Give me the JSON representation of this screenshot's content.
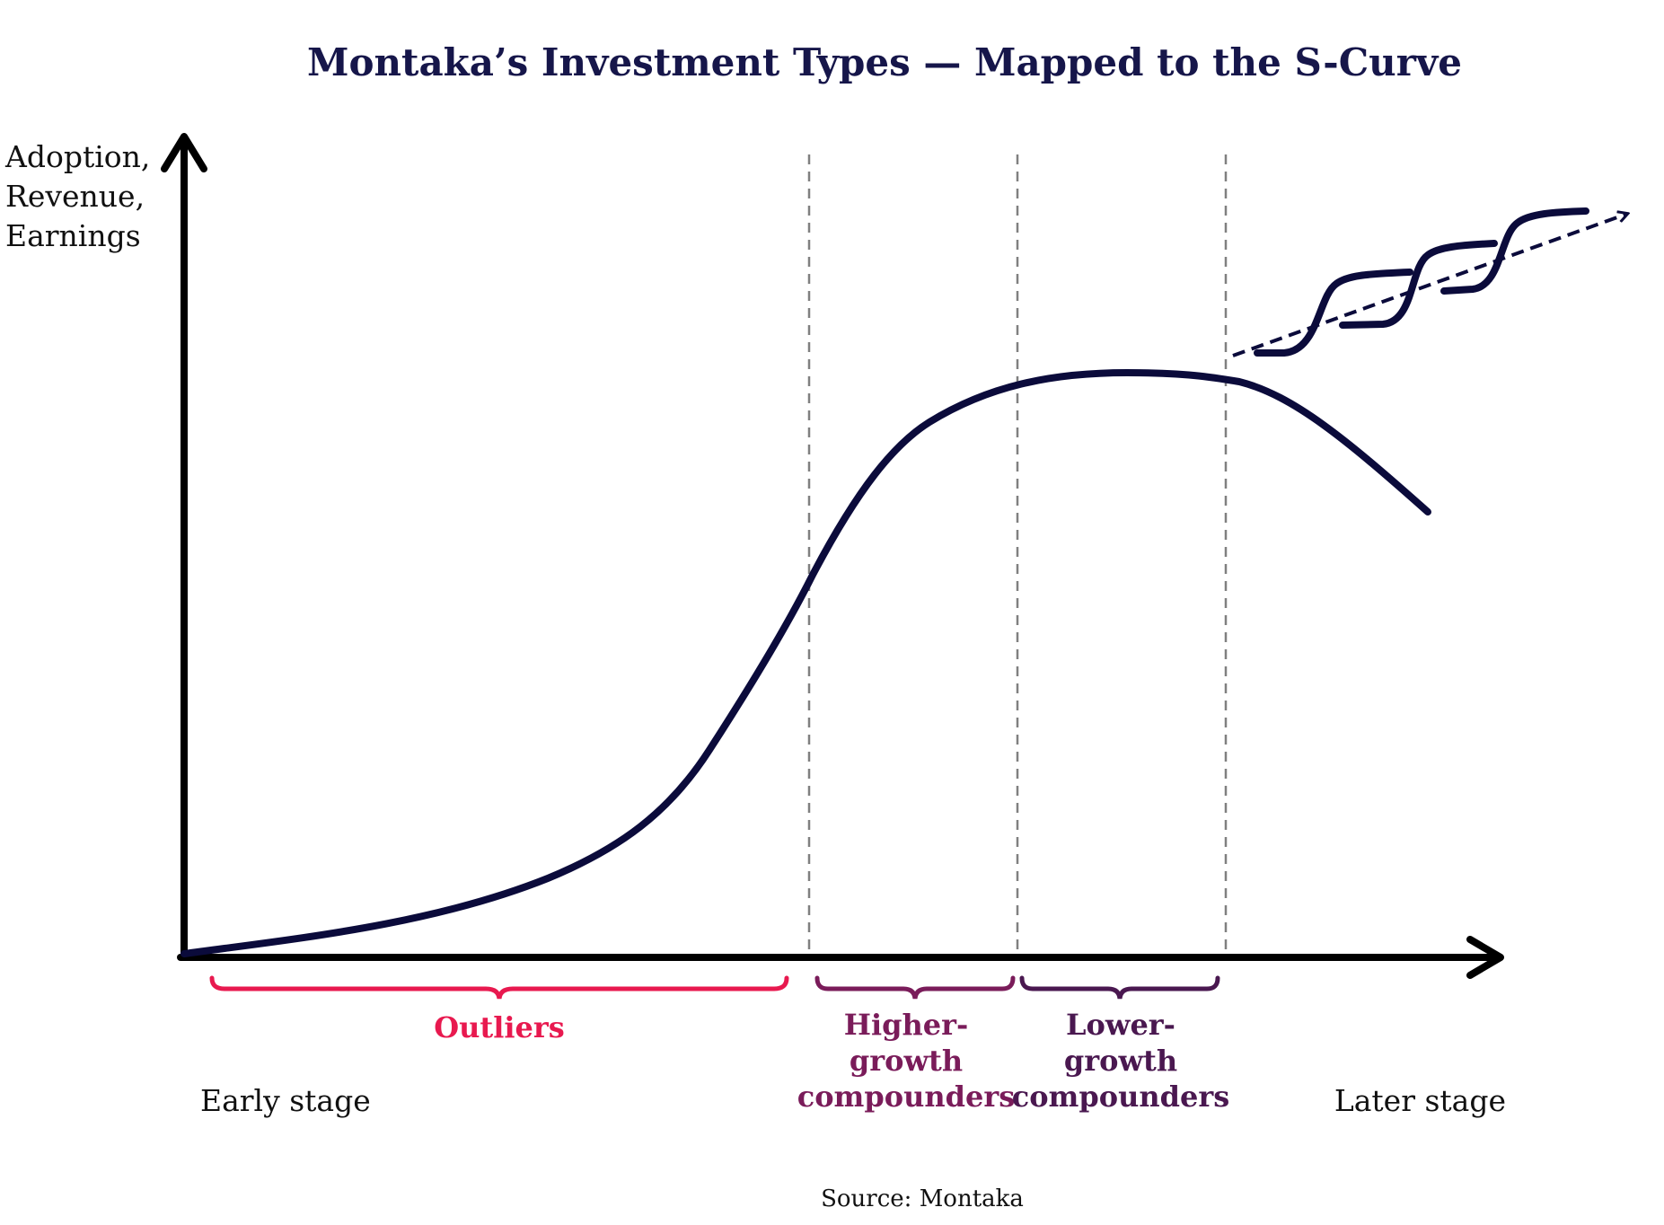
{
  "title": "Montaka’s Investment Types — Mapped to the S-Curve",
  "y_axis_label": [
    "Adoption,",
    "Revenue,",
    "Earnings"
  ],
  "x_axis_start_label": "Early stage",
  "x_axis_end_label": "Later stage",
  "segments": [
    {
      "lines": [
        "Outliers"
      ],
      "color": "#e8194f"
    },
    {
      "lines": [
        "Higher-",
        "growth",
        "compounders"
      ],
      "color": "#7a1c5a"
    },
    {
      "lines": [
        "Lower-",
        "growth",
        "compounders"
      ],
      "color": "#4a1850"
    }
  ],
  "source": "Source: Montaka",
  "colors": {
    "title": "#16164a",
    "curve": "#0b0b3b",
    "axis": "#000000",
    "dashed_divider": "#808080",
    "text": "#111111"
  }
}
